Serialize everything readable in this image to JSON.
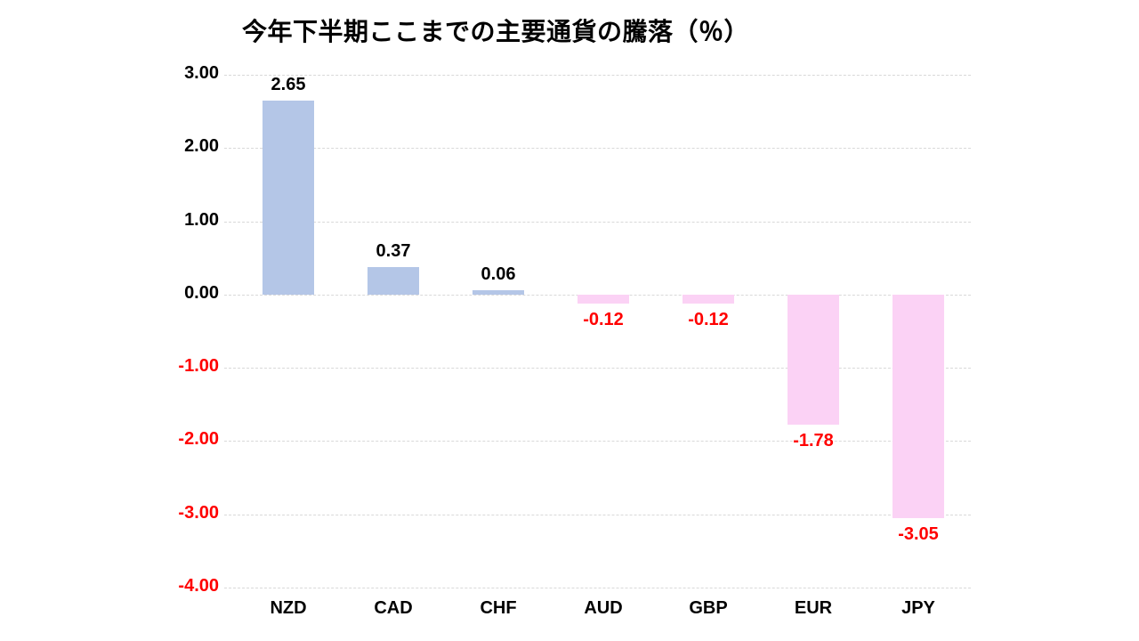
{
  "chart_data": {
    "type": "bar",
    "title": "今年下半期ここまでの主要通貨の騰落（％）",
    "categories": [
      "NZD",
      "CAD",
      "CHF",
      "AUD",
      "GBP",
      "EUR",
      "JPY"
    ],
    "values": [
      2.65,
      0.37,
      0.06,
      -0.12,
      -0.12,
      -1.78,
      -3.05
    ],
    "value_labels": [
      "2.65",
      "0.37",
      "0.06",
      "-0.12",
      "-0.12",
      "-1.78",
      "-3.05"
    ],
    "y_ticks": [
      3,
      2,
      1,
      0,
      -1,
      -2,
      -3,
      -4
    ],
    "y_tick_labels": [
      "3.00",
      "2.00",
      "1.00",
      "0.00",
      "-1.00",
      "-2.00",
      "-3.00",
      "-4.00"
    ],
    "ylim": [
      -4,
      3
    ],
    "xlabel": "",
    "ylabel": "",
    "grid": true,
    "legend": "none",
    "colors": {
      "positive_bar": "#b4c6e7",
      "negative_bar": "#fbd2f5",
      "positive_label": "#000000",
      "negative_label": "#ff0000",
      "gridline": "#d9d9d9"
    }
  }
}
